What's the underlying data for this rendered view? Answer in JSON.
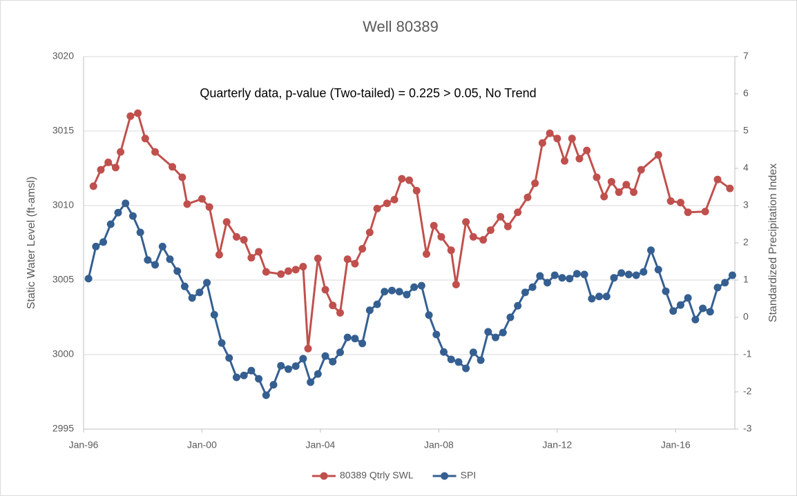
{
  "chart_data": {
    "type": "line",
    "title": "Well 80389",
    "annotation": "Quarterly data, p-value (Two-tailed) = 0.225 > 0.05, No Trend",
    "ylabel": "Static Water Level (ft-amsl)",
    "y2label": "Standardized Precipitation Index",
    "xlim": [
      "1996-01",
      "2018-01"
    ],
    "xticks": [
      {
        "value": "1996-01",
        "label": "Jan-96"
      },
      {
        "value": "2000-01",
        "label": "Jan-00"
      },
      {
        "value": "2004-01",
        "label": "Jan-04"
      },
      {
        "value": "2008-01",
        "label": "Jan-08"
      },
      {
        "value": "2012-01",
        "label": "Jan-12"
      },
      {
        "value": "2016-01",
        "label": "Jan-16"
      }
    ],
    "ylim": [
      2995,
      3020
    ],
    "yticks": [
      2995,
      3000,
      3005,
      3010,
      3015,
      3020
    ],
    "y2lim": [
      -3,
      7
    ],
    "y2ticks": [
      -3,
      -2,
      -1,
      0,
      1,
      2,
      3,
      4,
      5,
      6,
      7
    ],
    "grid": true,
    "legend": "bottom",
    "series": [
      {
        "name": "80389 Qtrly SWL",
        "color": "#c0504d",
        "x": [
          "1996-05",
          "1996-08",
          "1996-11",
          "1997-02",
          "1997-04",
          "1997-08",
          "1997-11",
          "1998-02",
          "1998-06",
          "1999-01",
          "1999-05",
          "1999-07",
          "2000-01",
          "2000-04",
          "2000-08",
          "2000-11",
          "2001-03",
          "2001-06",
          "2001-09",
          "2001-12",
          "2002-03",
          "2002-09",
          "2002-12",
          "2003-03",
          "2003-06",
          "2003-08",
          "2003-12",
          "2004-03",
          "2004-06",
          "2004-09",
          "2004-12",
          "2005-03",
          "2005-06",
          "2005-09",
          "2005-12",
          "2006-04",
          "2006-07",
          "2006-10",
          "2007-01",
          "2007-04",
          "2007-08",
          "2007-11",
          "2008-02",
          "2008-06",
          "2008-08",
          "2008-12",
          "2009-03",
          "2009-07",
          "2009-10",
          "2010-02",
          "2010-05",
          "2010-09",
          "2011-01",
          "2011-04",
          "2011-07",
          "2011-10",
          "2012-01",
          "2012-04",
          "2012-07",
          "2012-10",
          "2013-01",
          "2013-05",
          "2013-08",
          "2013-11",
          "2014-02",
          "2014-05",
          "2014-08",
          "2014-11",
          "2015-06",
          "2015-11",
          "2016-03",
          "2016-06",
          "2017-01",
          "2017-06",
          "2017-11"
        ],
        "values": [
          3011.3,
          3012.4,
          3012.9,
          3012.55,
          3013.6,
          3016.0,
          3016.2,
          3014.5,
          3013.6,
          3012.6,
          3011.9,
          3010.1,
          3010.45,
          3009.9,
          3006.7,
          3008.9,
          3007.9,
          3007.7,
          3006.5,
          3006.9,
          3005.55,
          3005.4,
          3005.6,
          3005.7,
          3005.9,
          3000.4,
          3006.45,
          3004.35,
          3003.3,
          3002.8,
          3006.4,
          3006.1,
          3007.1,
          3008.2,
          3009.8,
          3010.15,
          3010.4,
          3011.8,
          3011.7,
          3011.0,
          3006.75,
          3008.65,
          3007.9,
          3007.0,
          3004.7,
          3008.9,
          3007.9,
          3007.7,
          3008.35,
          3009.25,
          3008.6,
          3009.55,
          3010.55,
          3011.5,
          3014.2,
          3014.85,
          3014.5,
          3013.0,
          3014.5,
          3013.15,
          3013.7,
          3011.9,
          3010.6,
          3011.6,
          3010.9,
          3011.4,
          3010.9,
          3012.4,
          3013.4,
          3010.3,
          3010.2,
          3009.55,
          3009.6,
          3011.75,
          3011.15
        ]
      },
      {
        "name": "SPI",
        "color": "#355f91",
        "axis": "y2",
        "x": [
          "1996-03",
          "1996-06",
          "1996-09",
          "1996-12",
          "1997-03",
          "1997-06",
          "1997-09",
          "1997-12",
          "1998-03",
          "1998-06",
          "1998-09",
          "1998-12",
          "1999-03",
          "1999-06",
          "1999-09",
          "1999-12",
          "2000-03",
          "2000-06",
          "2000-09",
          "2000-12",
          "2001-03",
          "2001-06",
          "2001-09",
          "2001-12",
          "2002-03",
          "2002-06",
          "2002-09",
          "2002-12",
          "2003-03",
          "2003-06",
          "2003-09",
          "2003-12",
          "2004-03",
          "2004-06",
          "2004-09",
          "2004-12",
          "2005-03",
          "2005-06",
          "2005-09",
          "2005-12",
          "2006-03",
          "2006-06",
          "2006-09",
          "2006-12",
          "2007-03",
          "2007-06",
          "2007-09",
          "2007-12",
          "2008-03",
          "2008-06",
          "2008-09",
          "2008-12",
          "2009-03",
          "2009-06",
          "2009-09",
          "2009-12",
          "2010-03",
          "2010-06",
          "2010-09",
          "2010-12",
          "2011-03",
          "2011-06",
          "2011-09",
          "2011-12",
          "2012-03",
          "2012-06",
          "2012-09",
          "2012-12",
          "2013-03",
          "2013-06",
          "2013-09",
          "2013-12",
          "2014-03",
          "2014-06",
          "2014-09",
          "2014-12",
          "2015-03",
          "2015-06",
          "2015-09",
          "2015-12",
          "2016-03",
          "2016-06",
          "2016-09",
          "2016-12",
          "2017-03",
          "2017-06",
          "2017-09",
          "2017-12"
        ],
        "values": [
          1.04,
          1.9,
          2.02,
          2.5,
          2.81,
          3.06,
          2.72,
          2.28,
          1.54,
          1.41,
          1.9,
          1.56,
          1.24,
          0.83,
          0.52,
          0.67,
          0.93,
          0.07,
          -0.69,
          -1.09,
          -1.61,
          -1.56,
          -1.43,
          -1.65,
          -2.09,
          -1.81,
          -1.3,
          -1.39,
          -1.31,
          -1.11,
          -1.74,
          -1.52,
          -1.04,
          -1.19,
          -0.94,
          -0.54,
          -0.57,
          -0.7,
          0.19,
          0.35,
          0.69,
          0.72,
          0.69,
          0.61,
          0.81,
          0.85,
          0.06,
          -0.46,
          -0.93,
          -1.13,
          -1.2,
          -1.37,
          -0.94,
          -1.15,
          -0.39,
          -0.54,
          -0.41,
          0.0,
          0.31,
          0.67,
          0.81,
          1.11,
          0.93,
          1.13,
          1.06,
          1.04,
          1.17,
          1.15,
          0.5,
          0.56,
          0.56,
          1.06,
          1.19,
          1.15,
          1.13,
          1.22,
          1.8,
          1.28,
          0.7,
          0.17,
          0.33,
          0.52,
          -0.06,
          0.24,
          0.15,
          0.8,
          0.93,
          1.13
        ]
      }
    ]
  }
}
